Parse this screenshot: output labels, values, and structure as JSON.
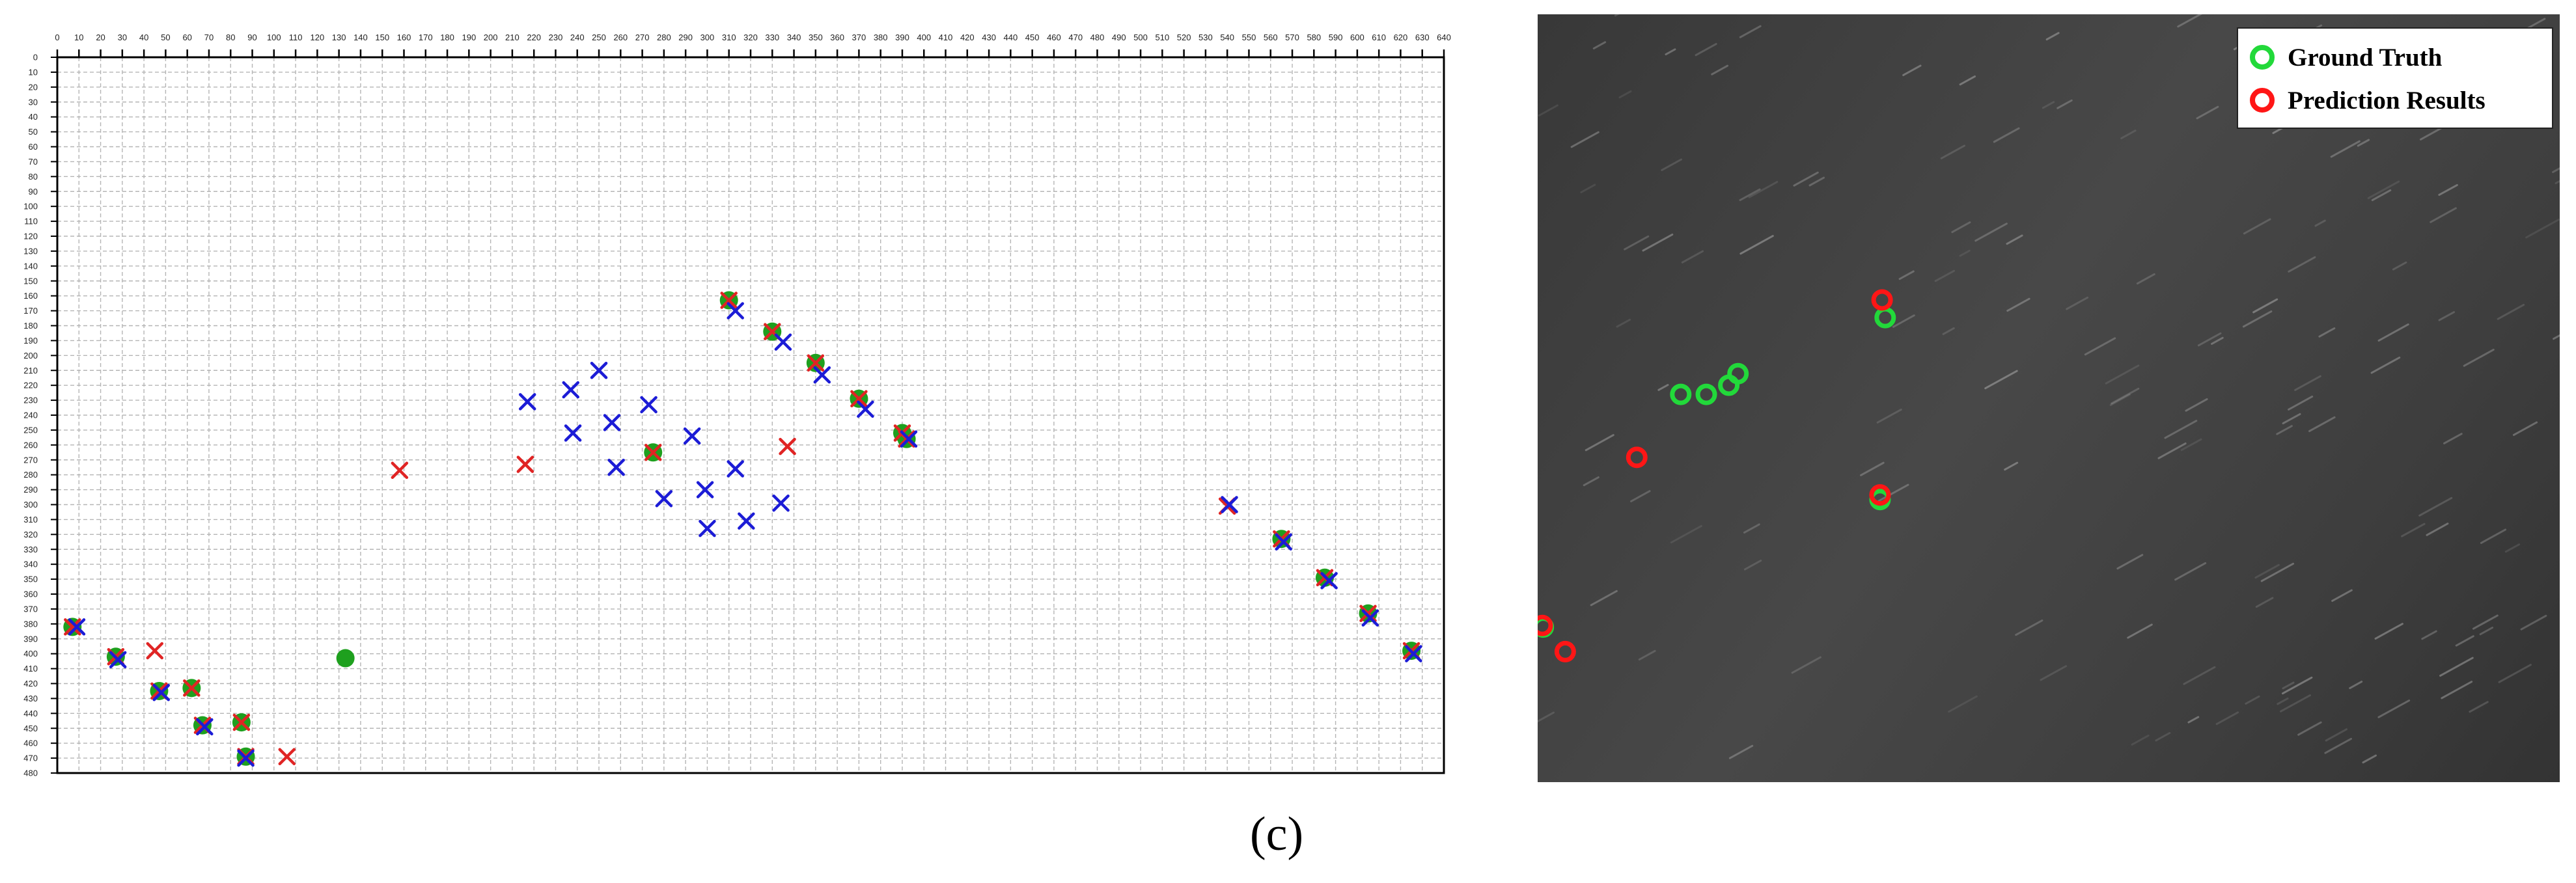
{
  "caption": "(c)",
  "legend": {
    "ground_truth": "Ground Truth",
    "prediction": "Prediction Results"
  },
  "colors": {
    "green": "#1ea01e",
    "red": "#e02424",
    "blue": "#1c1cd6",
    "ring_green": "#22d93a",
    "ring_red": "#ff1616"
  },
  "chart_data": [
    {
      "type": "scatter",
      "title": "",
      "xlabel": "",
      "ylabel": "",
      "xlim": [
        0,
        640
      ],
      "ylim": [
        480,
        0
      ],
      "x_ticks": [
        0,
        10,
        20,
        30,
        40,
        50,
        60,
        70,
        80,
        90,
        100,
        110,
        120,
        130,
        140,
        150,
        160,
        170,
        180,
        190,
        200,
        210,
        220,
        230,
        240,
        250,
        260,
        270,
        280,
        290,
        300,
        310,
        320,
        330,
        340,
        350,
        360,
        370,
        380,
        390,
        400,
        410,
        420,
        430,
        440,
        450,
        460,
        470,
        480,
        490,
        500,
        510,
        520,
        530,
        540,
        550,
        560,
        570,
        580,
        590,
        600,
        610,
        620,
        630,
        640
      ],
      "y_ticks": [
        0,
        10,
        20,
        30,
        40,
        50,
        60,
        70,
        80,
        90,
        100,
        110,
        120,
        130,
        140,
        150,
        160,
        170,
        180,
        190,
        200,
        210,
        220,
        230,
        240,
        250,
        260,
        270,
        280,
        290,
        300,
        310,
        320,
        330,
        340,
        350,
        360,
        370,
        380,
        390,
        400,
        410,
        420,
        430,
        440,
        450,
        460,
        470,
        480
      ],
      "grid": true,
      "series": [
        {
          "marker": "dot",
          "color": "green",
          "points": [
            [
              310,
              163
            ],
            [
              330,
              184
            ],
            [
              350,
              205
            ],
            [
              370,
              229
            ],
            [
              390,
              252
            ],
            [
              392,
              256
            ],
            [
              275,
              265
            ],
            [
              565,
              323
            ],
            [
              585,
              349
            ],
            [
              605,
              373
            ],
            [
              625,
              398
            ],
            [
              7,
              382
            ],
            [
              27,
              402
            ],
            [
              47,
              425
            ],
            [
              62,
              423
            ],
            [
              67,
              448
            ],
            [
              85,
              446
            ],
            [
              87,
              469
            ],
            [
              133,
              403
            ]
          ]
        },
        {
          "marker": "x",
          "color": "red",
          "points": [
            [
              310,
              163
            ],
            [
              330,
              184
            ],
            [
              350,
              205
            ],
            [
              370,
              229
            ],
            [
              390,
              252
            ],
            [
              392,
              256
            ],
            [
              275,
              265
            ],
            [
              337,
              261
            ],
            [
              158,
              277
            ],
            [
              216,
              273
            ],
            [
              540,
              301
            ],
            [
              565,
              323
            ],
            [
              585,
              349
            ],
            [
              605,
              373
            ],
            [
              625,
              398
            ],
            [
              7,
              382
            ],
            [
              27,
              402
            ],
            [
              47,
              425
            ],
            [
              45,
              398
            ],
            [
              62,
              423
            ],
            [
              67,
              448
            ],
            [
              85,
              446
            ],
            [
              87,
              469
            ],
            [
              106,
              469
            ]
          ]
        },
        {
          "marker": "x",
          "color": "blue",
          "points": [
            [
              313,
              170
            ],
            [
              335,
              191
            ],
            [
              353,
              213
            ],
            [
              373,
              236
            ],
            [
              393,
              256
            ],
            [
              217,
              231
            ],
            [
              237,
              223
            ],
            [
              250,
              210
            ],
            [
              273,
              233
            ],
            [
              256,
              245
            ],
            [
              238,
              252
            ],
            [
              293,
              254
            ],
            [
              258,
              275
            ],
            [
              313,
              276
            ],
            [
              299,
              290
            ],
            [
              280,
              296
            ],
            [
              334,
              299
            ],
            [
              300,
              316
            ],
            [
              318,
              311
            ],
            [
              541,
              300
            ],
            [
              566,
              325
            ],
            [
              587,
              351
            ],
            [
              606,
              376
            ],
            [
              626,
              400
            ],
            [
              9,
              382
            ],
            [
              28,
              404
            ],
            [
              48,
              426
            ],
            [
              68,
              449
            ],
            [
              87,
              470
            ]
          ]
        }
      ]
    },
    {
      "type": "scatter",
      "title": "",
      "grid": false,
      "legend_position": "top-right",
      "series": [
        {
          "name": "Ground Truth",
          "marker": "ring",
          "color": "green",
          "points": [
            [
              0.34,
              0.395
            ],
            [
              0.14,
              0.495
            ],
            [
              0.165,
              0.495
            ],
            [
              0.196,
              0.468
            ],
            [
              0.187,
              0.483
            ],
            [
              0.335,
              0.632
            ],
            [
              0.0055,
              0.798
            ]
          ]
        },
        {
          "name": "Prediction Results",
          "marker": "ring",
          "color": "red",
          "points": [
            [
              0.337,
              0.372
            ],
            [
              0.097,
              0.577
            ],
            [
              0.335,
              0.626
            ],
            [
              0.0045,
              0.796
            ],
            [
              0.027,
              0.83
            ]
          ]
        }
      ]
    }
  ]
}
